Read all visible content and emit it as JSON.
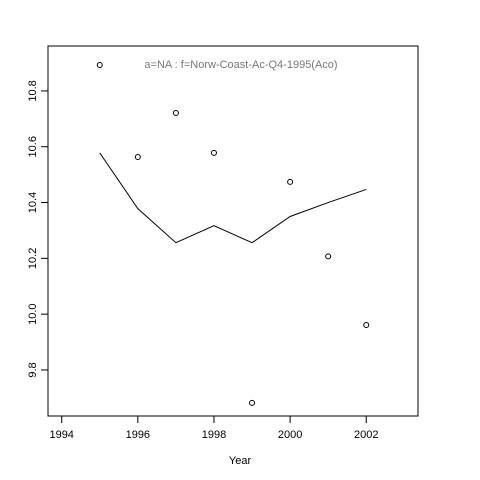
{
  "chart_data": {
    "type": "line",
    "title": "a=NA  :  f=Norw-Coast-Ac-Q4-1995(Aco)",
    "x_label": "Year",
    "x": [
      1995,
      1996,
      1997,
      1998,
      1999,
      2000,
      2001,
      2002
    ],
    "series": [
      {
        "color": "#000000",
        "style": "points",
        "values": [
          10.893,
          10.563,
          10.721,
          10.578,
          9.682,
          10.474,
          10.207,
          9.961
        ]
      },
      {
        "color": "#000000",
        "style": "line",
        "values": [
          10.578,
          10.378,
          10.256,
          10.317,
          10.256,
          10.35,
          10.4,
          10.447
        ]
      }
    ],
    "xlim": [
      1993.64,
      2003.36
    ],
    "xticks": [
      1994,
      1996,
      1998,
      2000,
      2002
    ],
    "ylim": [
      9.635,
      10.961
    ],
    "yticks": [
      9.8,
      {
        "value": 10.0,
        "label": "10.0"
      },
      10.2,
      10.4,
      10.6,
      10.8
    ]
  }
}
